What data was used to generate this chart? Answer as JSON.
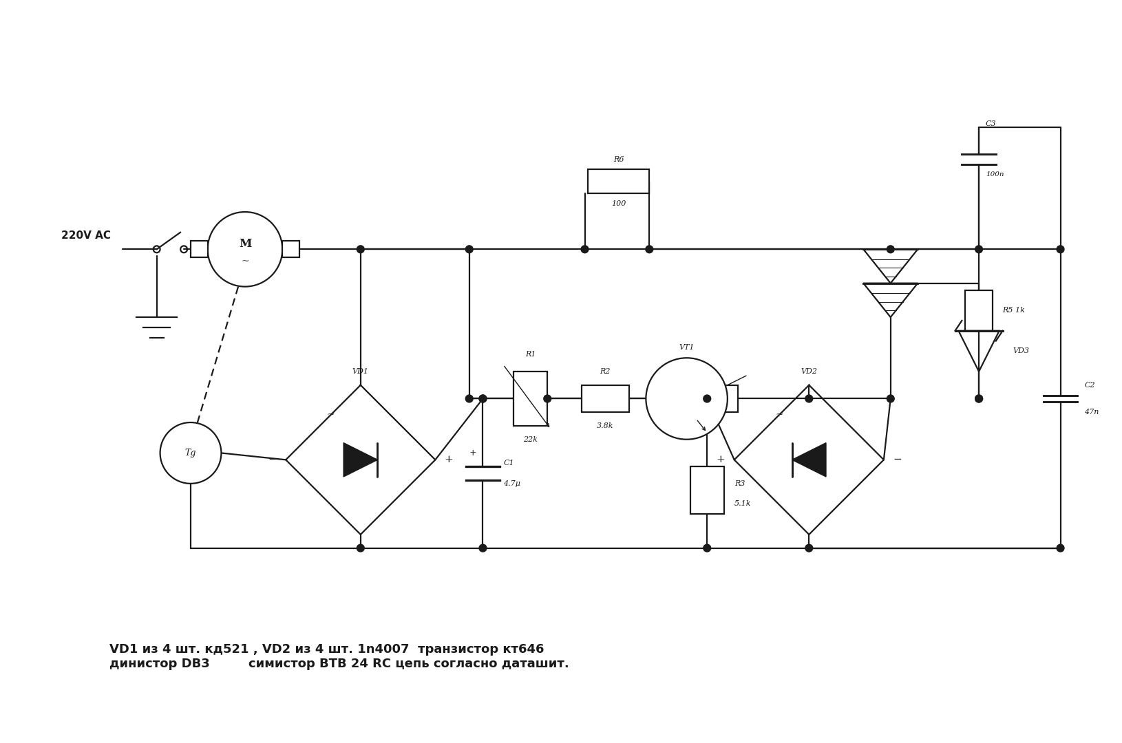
{
  "bg_color": "#ffffff",
  "line_color": "#1a1a1a",
  "line_width": 1.6,
  "fig_width": 16.3,
  "fig_height": 10.8,
  "annotation_text": "VD1 из 4 шт. кд521 , VD2 из 4 шт. 1n4007  транзистор кт646\nдинистор DB3         симистор ВТВ 24 RC цепь согласно даташит.",
  "label_220": "220V AC",
  "label_M": "M",
  "label_Tg": "Tg"
}
